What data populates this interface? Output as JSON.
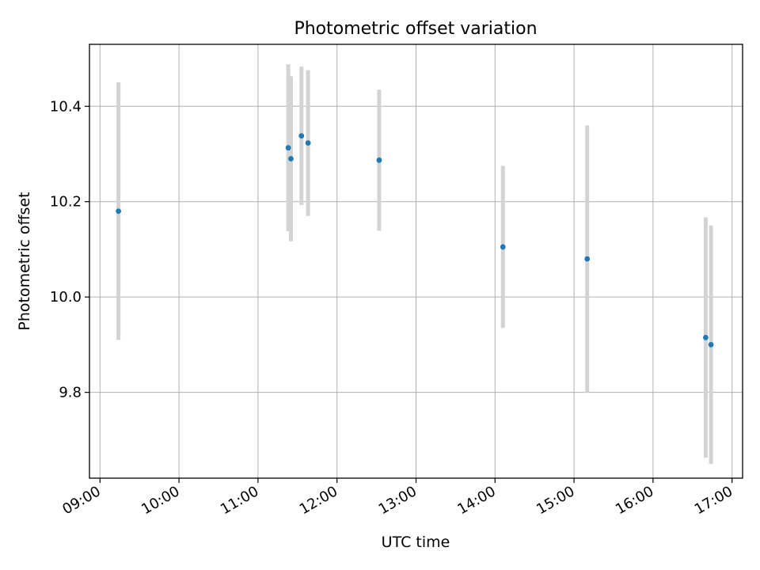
{
  "chart_data": {
    "type": "scatter",
    "title": "Photometric offset variation",
    "xlabel": "UTC time",
    "ylabel": "Photometric offset",
    "x_axis_type": "time",
    "xlim": [
      "08:52",
      "17:08"
    ],
    "ylim": [
      9.62,
      10.53
    ],
    "xticks": [
      "09:00",
      "10:00",
      "11:00",
      "12:00",
      "13:00",
      "14:00",
      "15:00",
      "16:00",
      "17:00"
    ],
    "yticks": [
      9.8,
      10.0,
      10.2,
      10.4
    ],
    "grid": true,
    "points": [
      {
        "x": "09:14",
        "y": 10.18,
        "err": 0.27
      },
      {
        "x": "11:23",
        "y": 10.313,
        "err": 0.175
      },
      {
        "x": "11:25",
        "y": 10.29,
        "err": 0.173
      },
      {
        "x": "11:33",
        "y": 10.338,
        "err": 0.145
      },
      {
        "x": "11:38",
        "y": 10.323,
        "err": 0.153
      },
      {
        "x": "12:32",
        "y": 10.287,
        "err": 0.148
      },
      {
        "x": "14:06",
        "y": 10.105,
        "err": 0.17
      },
      {
        "x": "15:10",
        "y": 10.08,
        "err": 0.28
      },
      {
        "x": "16:40",
        "y": 9.915,
        "err": 0.252
      },
      {
        "x": "16:44",
        "y": 9.9,
        "err": 0.25
      }
    ],
    "marker_color": "#1f77b4",
    "errorbar_color": "#d3d3d3"
  }
}
